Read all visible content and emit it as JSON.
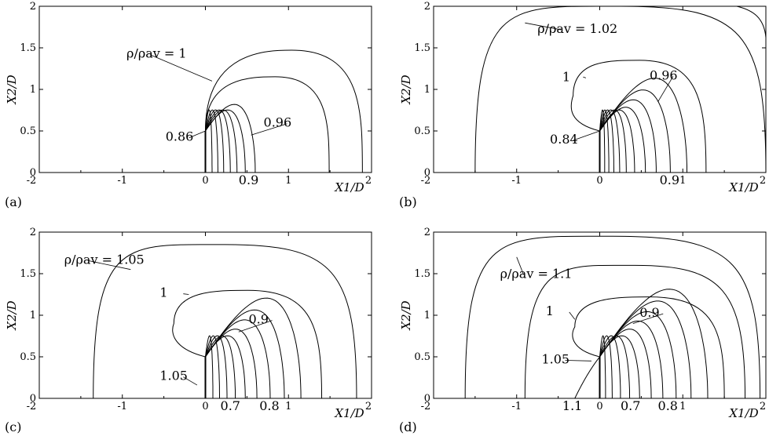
{
  "chart_data": [
    {
      "type": "contour",
      "panel_label": "(a)",
      "xlabel": "X_1/D",
      "ylabel": "X_2/D",
      "xlim": [
        -2,
        2
      ],
      "ylim": [
        0,
        2
      ],
      "xticks": [
        "-2",
        "-1",
        "0",
        "1",
        "2"
      ],
      "yticks": [
        "0",
        "0.5",
        "1",
        "1.5",
        "2"
      ],
      "source_point": [
        0,
        0.5
      ],
      "annotations": [
        "ρ/ρav = 1",
        "0.96",
        "0.86",
        "0.9"
      ],
      "contours": [
        {
          "kind": "loop",
          "r": 0.92,
          "ymax_cut": 2
        },
        {
          "kind": "loop",
          "r": 0.72,
          "ymax_cut": 2
        },
        {
          "kind": "fan",
          "x": 0.6
        },
        {
          "kind": "fan",
          "x": 0.48
        },
        {
          "kind": "fan",
          "x": 0.38
        },
        {
          "kind": "fan",
          "x": 0.3
        },
        {
          "kind": "fan",
          "x": 0.22
        },
        {
          "kind": "fan",
          "x": 0.15
        },
        {
          "kind": "fan",
          "x": 0.08
        }
      ]
    },
    {
      "type": "contour",
      "panel_label": "(b)",
      "xlabel": "X_1/D",
      "ylabel": "X_2/D",
      "xlim": [
        -2,
        2
      ],
      "ylim": [
        0,
        2
      ],
      "xticks": [
        "-2",
        "-1",
        "0",
        "1",
        "2"
      ],
      "yticks": [
        "0",
        "0.5",
        "1",
        "1.5",
        "2"
      ],
      "source_point": [
        0,
        0.5
      ],
      "annotations": [
        "ρ/ρav = 1.02",
        "1",
        "0.96",
        "0.84",
        "0.9"
      ],
      "contours": [
        {
          "kind": "loop",
          "x_left": -1.5,
          "x_right": 2.0,
          "ymax_cut": 2
        },
        {
          "kind": "curl",
          "x_left": -0.32,
          "x_right": 1.28,
          "ytop": 1.35
        },
        {
          "kind": "fan",
          "x": 1.05
        },
        {
          "kind": "fan",
          "x": 0.85
        },
        {
          "kind": "fan",
          "x": 0.68
        },
        {
          "kind": "fan",
          "x": 0.55
        },
        {
          "kind": "fan",
          "x": 0.42
        },
        {
          "kind": "fan",
          "x": 0.32
        },
        {
          "kind": "fan",
          "x": 0.24
        },
        {
          "kind": "fan",
          "x": 0.17
        },
        {
          "kind": "fan",
          "x": 0.11
        },
        {
          "kind": "fan",
          "x": 0.06
        }
      ]
    },
    {
      "type": "contour",
      "panel_label": "(c)",
      "xlabel": "X_1/D",
      "ylabel": "X_2/D",
      "xlim": [
        -2,
        2
      ],
      "ylim": [
        0,
        2
      ],
      "xticks": [
        "-2",
        "-1",
        "0",
        "1",
        "2"
      ],
      "yticks": [
        "0",
        "0.5",
        "1",
        "1.5",
        "2"
      ],
      "source_point": [
        0,
        0.5
      ],
      "annotations": [
        "ρ/ρav = 1.05",
        "1",
        "0.9",
        "1.05",
        "0.7",
        "0.8"
      ],
      "contours": [
        {
          "kind": "loop",
          "x_left": -1.35,
          "x_right": 1.82,
          "ytop": 1.85
        },
        {
          "kind": "curl",
          "x_left": -0.38,
          "x_right": 1.4,
          "ytop": 1.3
        },
        {
          "kind": "fan",
          "x": 1.15
        },
        {
          "kind": "fan",
          "x": 0.95
        },
        {
          "kind": "fan",
          "x": 0.78
        },
        {
          "kind": "fan",
          "x": 0.62
        },
        {
          "kind": "fan",
          "x": 0.48
        },
        {
          "kind": "fan",
          "x": 0.36
        },
        {
          "kind": "fan",
          "x": 0.26
        },
        {
          "kind": "fan",
          "x": 0.17
        },
        {
          "kind": "fan",
          "x": 0.09
        }
      ]
    },
    {
      "type": "contour",
      "panel_label": "(d)",
      "xlabel": "X_1/D",
      "ylabel": "X_2/D",
      "xlim": [
        -2,
        2
      ],
      "ylim": [
        0,
        2
      ],
      "xticks": [
        "-2",
        "-1",
        "0",
        "1",
        "2"
      ],
      "yticks": [
        "0",
        "0.5",
        "1",
        "1.5",
        "2"
      ],
      "source_point": [
        0,
        0.5
      ],
      "annotations": [
        "ρ/ρav = 1.1",
        "1",
        "0.9",
        "1.05",
        "1.1",
        "0.7",
        "0.8"
      ],
      "contours": [
        {
          "kind": "loop",
          "x_left": -1.62,
          "x_right": 1.93,
          "ytop": 1.95
        },
        {
          "kind": "loop",
          "x_left": -0.9,
          "x_right": 1.75,
          "ytop": 1.6
        },
        {
          "kind": "curl",
          "x_left": -0.3,
          "x_right": 1.5,
          "ytop": 1.22
        },
        {
          "kind": "fan",
          "x": 1.3
        },
        {
          "kind": "fan",
          "x": 1.1
        },
        {
          "kind": "fan",
          "x": 0.92
        },
        {
          "kind": "fan",
          "x": 0.76
        },
        {
          "kind": "fan",
          "x": 0.62
        },
        {
          "kind": "fan",
          "x": 0.48
        },
        {
          "kind": "fan",
          "x": 0.36
        },
        {
          "kind": "fan",
          "x": 0.25
        },
        {
          "kind": "fan",
          "x": 0.15
        },
        {
          "kind": "fan",
          "x": 0.07
        },
        {
          "kind": "left",
          "x": -0.3
        }
      ]
    }
  ]
}
